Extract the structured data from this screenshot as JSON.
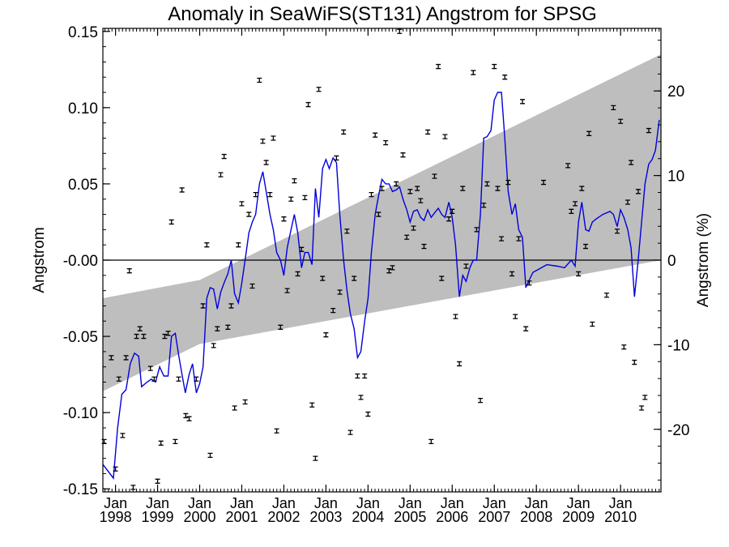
{
  "chart_data": {
    "type": "scatter",
    "title": "Anomaly in SeaWiFS(ST131) Angstrom for SPSG",
    "ylabel": "Angstrom",
    "y2label": "Angstrom (%)",
    "xlabel": "",
    "xlim": [
      1997.7,
      2010.96
    ],
    "ylim": [
      -0.152,
      0.152
    ],
    "y2lim": [
      -27.4,
      27.4
    ],
    "y_ticks": [
      "0.15",
      "0.10",
      "0.05",
      "-0.00",
      "-0.05",
      "-0.10",
      "-0.15"
    ],
    "y_tick_values": [
      0.15,
      0.1,
      0.05,
      0.0,
      -0.05,
      -0.1,
      -0.15
    ],
    "y2_ticks": [
      "20",
      "10",
      "0",
      "-10",
      "-20"
    ],
    "y2_tick_values": [
      20,
      10,
      0,
      -10,
      -20
    ],
    "x_ticks": [
      {
        "month": "Jan",
        "year": "1998",
        "x": 1998.0
      },
      {
        "month": "Jan",
        "year": "1999",
        "x": 1999.0
      },
      {
        "month": "Jan",
        "year": "2000",
        "x": 2000.0
      },
      {
        "month": "Jan",
        "year": "2001",
        "x": 2001.0
      },
      {
        "month": "Jan",
        "year": "2002",
        "x": 2002.0
      },
      {
        "month": "Jan",
        "year": "2003",
        "x": 2003.0
      },
      {
        "month": "Jan",
        "year": "2004",
        "x": 2004.0
      },
      {
        "month": "Jan",
        "year": "2005",
        "x": 2005.0
      },
      {
        "month": "Jan",
        "year": "2006",
        "x": 2006.0
      },
      {
        "month": "Jan",
        "year": "2007",
        "x": 2007.0
      },
      {
        "month": "Jan",
        "year": "2008",
        "x": 2008.0
      },
      {
        "month": "Jan",
        "year": "2009",
        "x": 2009.0
      },
      {
        "month": "Jan",
        "year": "2010",
        "x": 2010.0
      }
    ],
    "zero_line": 0.0,
    "trend_band": {
      "color": "#bebebe",
      "x": [
        1997.7,
        2000.0,
        2010.96
      ],
      "upper": [
        -0.025,
        -0.013,
        0.135
      ],
      "lower": [
        -0.086,
        -0.055,
        0.0
      ]
    },
    "monthly_anomalies": {
      "marker": "error-bar",
      "color": "#000000",
      "points": [
        [
          1997.73,
          -0.119
        ],
        [
          1997.9,
          -0.064
        ],
        [
          1998.0,
          -0.137
        ],
        [
          1998.08,
          -0.078
        ],
        [
          1998.17,
          -0.115
        ],
        [
          1998.25,
          -0.064
        ],
        [
          1998.33,
          -0.007
        ],
        [
          1998.42,
          -0.149
        ],
        [
          1998.5,
          -0.05
        ],
        [
          1998.58,
          -0.045
        ],
        [
          1998.67,
          -0.05
        ],
        [
          1998.83,
          -0.071
        ],
        [
          1998.92,
          -0.078
        ],
        [
          1999.0,
          -0.145
        ],
        [
          1999.08,
          -0.12
        ],
        [
          1999.17,
          -0.05
        ],
        [
          1999.25,
          -0.048
        ],
        [
          1999.33,
          0.025
        ],
        [
          1999.42,
          -0.119
        ],
        [
          1999.5,
          -0.078
        ],
        [
          1999.58,
          0.046
        ],
        [
          1999.67,
          -0.102
        ],
        [
          1999.75,
          -0.104
        ],
        [
          1999.92,
          -0.078
        ],
        [
          2000.08,
          -0.03
        ],
        [
          2000.17,
          0.01
        ],
        [
          2000.25,
          -0.128
        ],
        [
          2000.33,
          -0.056
        ],
        [
          2000.42,
          -0.045
        ],
        [
          2000.5,
          0.056
        ],
        [
          2000.58,
          0.068
        ],
        [
          2000.67,
          -0.044
        ],
        [
          2000.75,
          -0.03
        ],
        [
          2000.83,
          -0.097
        ],
        [
          2000.92,
          0.01
        ],
        [
          2001.0,
          0.037
        ],
        [
          2001.08,
          -0.093
        ],
        [
          2001.17,
          0.03
        ],
        [
          2001.25,
          -0.017
        ],
        [
          2001.33,
          0.043
        ],
        [
          2001.42,
          0.118
        ],
        [
          2001.5,
          0.078
        ],
        [
          2001.58,
          0.064
        ],
        [
          2001.67,
          0.043
        ],
        [
          2001.75,
          0.08
        ],
        [
          2001.83,
          -0.112
        ],
        [
          2001.92,
          -0.044
        ],
        [
          2002.0,
          0.027
        ],
        [
          2002.08,
          -0.02
        ],
        [
          2002.17,
          0.04
        ],
        [
          2002.25,
          0.052
        ],
        [
          2002.33,
          -0.009
        ],
        [
          2002.42,
          0.007
        ],
        [
          2002.5,
          0.041
        ],
        [
          2002.58,
          0.102
        ],
        [
          2002.67,
          -0.095
        ],
        [
          2002.75,
          -0.13
        ],
        [
          2002.83,
          0.112
        ],
        [
          2002.92,
          -0.012
        ],
        [
          2003.0,
          -0.049
        ],
        [
          2003.17,
          -0.033
        ],
        [
          2003.25,
          0.067
        ],
        [
          2003.33,
          -0.021
        ],
        [
          2003.42,
          0.084
        ],
        [
          2003.5,
          0.019
        ],
        [
          2003.58,
          -0.113
        ],
        [
          2003.67,
          -0.012
        ],
        [
          2003.75,
          -0.076
        ],
        [
          2003.83,
          -0.09
        ],
        [
          2003.92,
          -0.076
        ],
        [
          2004.0,
          -0.101
        ],
        [
          2004.08,
          0.043
        ],
        [
          2004.17,
          0.082
        ],
        [
          2004.25,
          0.03
        ],
        [
          2004.33,
          0.047
        ],
        [
          2004.42,
          0.077
        ],
        [
          2004.5,
          -0.007
        ],
        [
          2004.58,
          -0.005
        ],
        [
          2004.67,
          0.05
        ],
        [
          2004.75,
          0.15
        ],
        [
          2004.83,
          0.069
        ],
        [
          2004.92,
          0.015
        ],
        [
          2005.0,
          0.045
        ],
        [
          2005.08,
          0.021
        ],
        [
          2005.17,
          0.047
        ],
        [
          2005.25,
          0.039
        ],
        [
          2005.33,
          0.009
        ],
        [
          2005.42,
          0.084
        ],
        [
          2005.5,
          -0.119
        ],
        [
          2005.58,
          0.055
        ],
        [
          2005.67,
          0.127
        ],
        [
          2005.75,
          -0.012
        ],
        [
          2005.83,
          0.081
        ],
        [
          2005.92,
          0.027
        ],
        [
          2006.0,
          0.032
        ],
        [
          2006.08,
          -0.037
        ],
        [
          2006.17,
          -0.068
        ],
        [
          2006.25,
          0.047
        ],
        [
          2006.33,
          -0.004
        ],
        [
          2006.5,
          0.123
        ],
        [
          2006.58,
          0.02
        ],
        [
          2006.67,
          -0.092
        ],
        [
          2006.75,
          0.036
        ],
        [
          2006.83,
          0.05
        ],
        [
          2007.0,
          0.127
        ],
        [
          2007.08,
          0.047
        ],
        [
          2007.17,
          0.014
        ],
        [
          2007.25,
          0.12
        ],
        [
          2007.33,
          0.051
        ],
        [
          2007.42,
          -0.009
        ],
        [
          2007.5,
          -0.037
        ],
        [
          2007.58,
          0.014
        ],
        [
          2007.67,
          0.104
        ],
        [
          2007.75,
          -0.045
        ],
        [
          2007.83,
          -0.015
        ],
        [
          2008.17,
          0.051
        ],
        [
          2008.75,
          0.062
        ],
        [
          2008.83,
          0.032
        ],
        [
          2008.92,
          0.037
        ],
        [
          2009.0,
          -0.009
        ],
        [
          2009.08,
          0.047
        ],
        [
          2009.17,
          0.009
        ],
        [
          2009.25,
          0.083
        ],
        [
          2009.33,
          -0.042
        ],
        [
          2009.67,
          -0.023
        ],
        [
          2009.83,
          0.1
        ],
        [
          2009.92,
          0.019
        ],
        [
          2010.0,
          0.091
        ],
        [
          2010.08,
          -0.057
        ],
        [
          2010.17,
          0.038
        ],
        [
          2010.25,
          0.064
        ],
        [
          2010.33,
          -0.067
        ],
        [
          2010.42,
          0.045
        ],
        [
          2010.5,
          -0.097
        ],
        [
          2010.58,
          -0.09
        ],
        [
          2010.67,
          0.085
        ]
      ]
    },
    "smoothed_series": {
      "color": "#0000dd",
      "points": [
        [
          1997.7,
          -0.134
        ],
        [
          1997.95,
          -0.143
        ],
        [
          1998.05,
          -0.11
        ],
        [
          1998.15,
          -0.088
        ],
        [
          1998.25,
          -0.085
        ],
        [
          1998.35,
          -0.068
        ],
        [
          1998.45,
          -0.061
        ],
        [
          1998.55,
          -0.063
        ],
        [
          1998.62,
          -0.083
        ],
        [
          1998.75,
          -0.08
        ],
        [
          1998.85,
          -0.078
        ],
        [
          1998.95,
          -0.08
        ],
        [
          1999.05,
          -0.07
        ],
        [
          1999.15,
          -0.076
        ],
        [
          1999.25,
          -0.076
        ],
        [
          1999.33,
          -0.05
        ],
        [
          1999.42,
          -0.048
        ],
        [
          1999.5,
          -0.062
        ],
        [
          1999.58,
          -0.075
        ],
        [
          1999.66,
          -0.087
        ],
        [
          1999.75,
          -0.075
        ],
        [
          1999.83,
          -0.068
        ],
        [
          1999.92,
          -0.087
        ],
        [
          2000.0,
          -0.081
        ],
        [
          2000.08,
          -0.07
        ],
        [
          2000.17,
          -0.025
        ],
        [
          2000.25,
          -0.018
        ],
        [
          2000.33,
          -0.019
        ],
        [
          2000.42,
          -0.032
        ],
        [
          2000.5,
          -0.021
        ],
        [
          2000.58,
          -0.015
        ],
        [
          2000.67,
          -0.009
        ],
        [
          2000.75,
          0.0
        ],
        [
          2000.83,
          -0.022
        ],
        [
          2000.92,
          -0.028
        ],
        [
          2001.0,
          -0.015
        ],
        [
          2001.08,
          0.0
        ],
        [
          2001.17,
          0.018
        ],
        [
          2001.25,
          0.025
        ],
        [
          2001.33,
          0.03
        ],
        [
          2001.42,
          0.05
        ],
        [
          2001.5,
          0.058
        ],
        [
          2001.58,
          0.045
        ],
        [
          2001.67,
          0.03
        ],
        [
          2001.75,
          0.02
        ],
        [
          2001.83,
          0.005
        ],
        [
          2001.92,
          0.0
        ],
        [
          2002.0,
          -0.01
        ],
        [
          2002.08,
          0.008
        ],
        [
          2002.17,
          0.02
        ],
        [
          2002.25,
          0.03
        ],
        [
          2002.33,
          0.018
        ],
        [
          2002.42,
          -0.005
        ],
        [
          2002.5,
          0.005
        ],
        [
          2002.58,
          0.005
        ],
        [
          2002.67,
          -0.003
        ],
        [
          2002.75,
          0.047
        ],
        [
          2002.83,
          0.028
        ],
        [
          2002.92,
          0.06
        ],
        [
          2003.0,
          0.066
        ],
        [
          2003.08,
          0.06
        ],
        [
          2003.17,
          0.067
        ],
        [
          2003.25,
          0.064
        ],
        [
          2003.33,
          0.03
        ],
        [
          2003.42,
          0.0
        ],
        [
          2003.5,
          -0.02
        ],
        [
          2003.58,
          -0.035
        ],
        [
          2003.67,
          -0.045
        ],
        [
          2003.75,
          -0.064
        ],
        [
          2003.83,
          -0.06
        ],
        [
          2003.92,
          -0.04
        ],
        [
          2004.0,
          -0.025
        ],
        [
          2004.08,
          0.005
        ],
        [
          2004.17,
          0.03
        ],
        [
          2004.25,
          0.042
        ],
        [
          2004.33,
          0.053
        ],
        [
          2004.42,
          0.05
        ],
        [
          2004.5,
          0.05
        ],
        [
          2004.58,
          0.045
        ],
        [
          2004.67,
          0.046
        ],
        [
          2004.75,
          0.048
        ],
        [
          2004.83,
          0.04
        ],
        [
          2004.92,
          0.033
        ],
        [
          2005.0,
          0.025
        ],
        [
          2005.08,
          0.032
        ],
        [
          2005.17,
          0.033
        ],
        [
          2005.25,
          0.028
        ],
        [
          2005.33,
          0.026
        ],
        [
          2005.42,
          0.033
        ],
        [
          2005.5,
          0.028
        ],
        [
          2005.58,
          0.031
        ],
        [
          2005.67,
          0.034
        ],
        [
          2005.75,
          0.03
        ],
        [
          2005.83,
          0.028
        ],
        [
          2005.92,
          0.038
        ],
        [
          2006.0,
          0.028
        ],
        [
          2006.08,
          0.01
        ],
        [
          2006.17,
          -0.024
        ],
        [
          2006.25,
          -0.01
        ],
        [
          2006.33,
          -0.014
        ],
        [
          2006.42,
          -0.005
        ],
        [
          2006.5,
          0.0
        ],
        [
          2006.58,
          0.0
        ],
        [
          2006.67,
          0.03
        ],
        [
          2006.75,
          0.08
        ],
        [
          2006.83,
          0.081
        ],
        [
          2006.92,
          0.085
        ],
        [
          2007.0,
          0.105
        ],
        [
          2007.08,
          0.11
        ],
        [
          2007.17,
          0.11
        ],
        [
          2007.25,
          0.08
        ],
        [
          2007.33,
          0.045
        ],
        [
          2007.42,
          0.03
        ],
        [
          2007.5,
          0.037
        ],
        [
          2007.58,
          0.02
        ],
        [
          2007.67,
          0.015
        ],
        [
          2007.75,
          -0.018
        ],
        [
          2007.83,
          -0.013
        ],
        [
          2007.92,
          -0.008
        ],
        [
          2008.25,
          -0.003
        ],
        [
          2008.5,
          -0.004
        ],
        [
          2008.67,
          -0.005
        ],
        [
          2008.83,
          0.0
        ],
        [
          2008.92,
          -0.004
        ],
        [
          2009.0,
          0.025
        ],
        [
          2009.08,
          0.038
        ],
        [
          2009.17,
          0.02
        ],
        [
          2009.25,
          0.019
        ],
        [
          2009.33,
          0.025
        ],
        [
          2009.42,
          0.027
        ],
        [
          2009.58,
          0.03
        ],
        [
          2009.75,
          0.032
        ],
        [
          2009.83,
          0.03
        ],
        [
          2009.92,
          0.022
        ],
        [
          2010.0,
          0.033
        ],
        [
          2010.08,
          0.028
        ],
        [
          2010.17,
          0.02
        ],
        [
          2010.25,
          0.008
        ],
        [
          2010.33,
          -0.024
        ],
        [
          2010.42,
          0.0
        ],
        [
          2010.5,
          0.025
        ],
        [
          2010.58,
          0.05
        ],
        [
          2010.67,
          0.063
        ],
        [
          2010.75,
          0.066
        ],
        [
          2010.83,
          0.072
        ],
        [
          2010.92,
          0.092
        ]
      ]
    }
  }
}
